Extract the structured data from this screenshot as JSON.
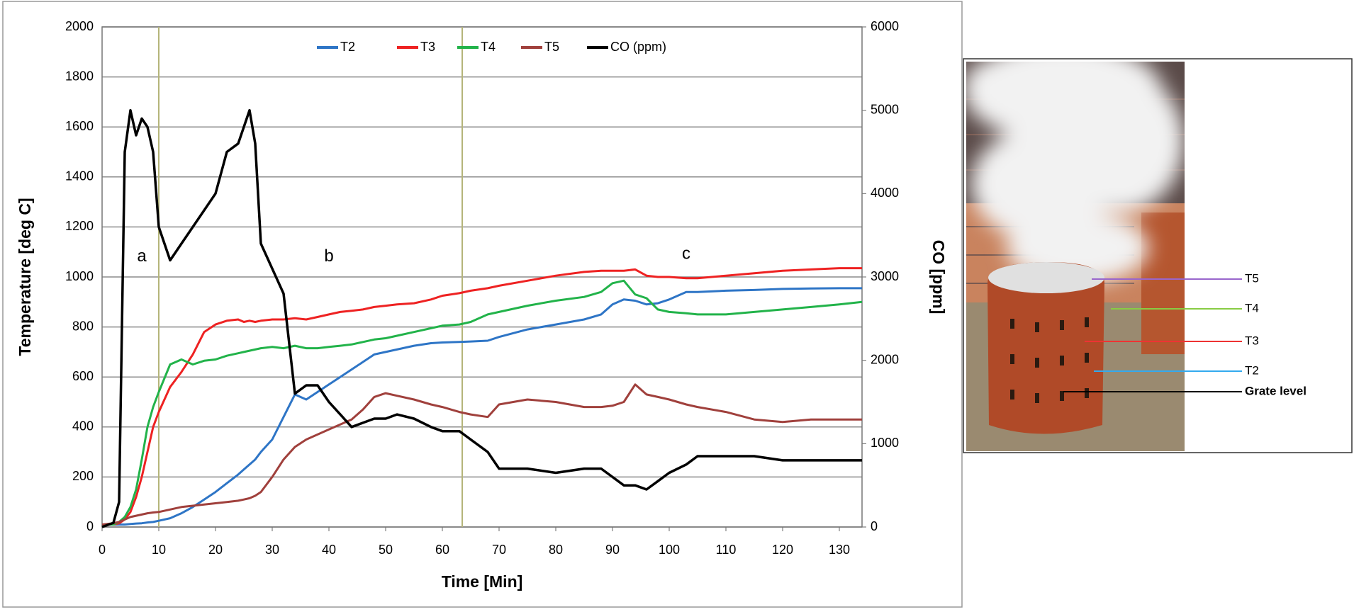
{
  "chart_data": {
    "type": "line",
    "y_label": "Temperature [deg C]",
    "y2_label": "CO [ppm]",
    "x_label": "Time [Min]",
    "x": [
      0,
      2,
      3,
      4,
      5,
      6,
      7,
      8,
      9,
      10,
      12,
      14,
      16,
      18,
      20,
      22,
      24,
      25,
      26,
      27,
      28,
      30,
      32,
      34,
      36,
      38,
      40,
      42,
      44,
      46,
      48,
      50,
      52,
      55,
      58,
      60,
      63,
      65,
      68,
      70,
      75,
      80,
      85,
      88,
      90,
      92,
      94,
      96,
      98,
      100,
      103,
      105,
      110,
      115,
      120,
      125,
      130,
      134
    ],
    "series": [
      {
        "name": "T2",
        "color": "#2e75c6",
        "values": [
          10,
          10,
          10,
          10,
          12,
          14,
          15,
          18,
          20,
          25,
          35,
          55,
          80,
          110,
          140,
          175,
          210,
          230,
          250,
          270,
          300,
          350,
          440,
          530,
          510,
          540,
          570,
          600,
          630,
          660,
          690,
          700,
          710,
          725,
          735,
          738,
          740,
          742,
          745,
          760,
          790,
          810,
          830,
          850,
          890,
          910,
          905,
          890,
          895,
          910,
          940,
          940,
          945,
          948,
          952,
          954,
          955,
          955
        ]
      },
      {
        "name": "T3",
        "color": "#ee2222",
        "values": [
          10,
          10,
          15,
          30,
          60,
          120,
          200,
          300,
          400,
          460,
          560,
          620,
          690,
          780,
          810,
          825,
          830,
          820,
          825,
          820,
          825,
          830,
          830,
          835,
          830,
          840,
          850,
          860,
          865,
          870,
          880,
          885,
          890,
          895,
          910,
          925,
          935,
          945,
          955,
          965,
          985,
          1005,
          1020,
          1025,
          1025,
          1025,
          1030,
          1005,
          1000,
          1000,
          995,
          995,
          1005,
          1015,
          1025,
          1030,
          1035,
          1035
        ]
      },
      {
        "name": "T4",
        "color": "#22b34a",
        "values": [
          10,
          10,
          20,
          40,
          80,
          150,
          270,
          400,
          480,
          540,
          650,
          670,
          650,
          665,
          670,
          685,
          695,
          700,
          705,
          710,
          715,
          720,
          715,
          725,
          715,
          715,
          720,
          725,
          730,
          740,
          750,
          755,
          765,
          780,
          795,
          805,
          810,
          820,
          850,
          860,
          885,
          905,
          920,
          940,
          975,
          985,
          930,
          915,
          870,
          860,
          855,
          850,
          850,
          860,
          870,
          880,
          890,
          900
        ]
      },
      {
        "name": "T5",
        "color": "#a0403c",
        "values": [
          10,
          15,
          20,
          30,
          40,
          45,
          50,
          55,
          58,
          60,
          70,
          80,
          85,
          90,
          95,
          100,
          105,
          110,
          115,
          125,
          140,
          200,
          270,
          320,
          350,
          370,
          390,
          410,
          430,
          470,
          520,
          535,
          525,
          510,
          490,
          480,
          460,
          450,
          440,
          490,
          510,
          500,
          480,
          480,
          485,
          500,
          570,
          530,
          520,
          510,
          490,
          480,
          460,
          430,
          420,
          430,
          430,
          430
        ]
      },
      {
        "name": "CO (ppm)",
        "color": "#000000",
        "axis": "y2",
        "values": [
          0,
          50,
          300,
          4500,
          5000,
          4700,
          4900,
          4800,
          4500,
          3600,
          3200,
          3400,
          3600,
          3800,
          4000,
          4500,
          4600,
          4800,
          5000,
          4600,
          3400,
          3100,
          2800,
          1600,
          1700,
          1700,
          1500,
          1350,
          1200,
          1250,
          1300,
          1300,
          1350,
          1300,
          1200,
          1150,
          1150,
          1050,
          900,
          700,
          700,
          650,
          700,
          700,
          600,
          500,
          500,
          450,
          550,
          650,
          750,
          850,
          850,
          850,
          800,
          800,
          800,
          800
        ]
      }
    ],
    "xlim": [
      0,
      134
    ],
    "xticks": [
      0,
      10,
      20,
      30,
      40,
      50,
      60,
      70,
      80,
      90,
      100,
      110,
      120,
      130
    ],
    "ylim": [
      0,
      2000
    ],
    "yticks": [
      0,
      200,
      400,
      600,
      800,
      1000,
      1200,
      1400,
      1600,
      1800,
      2000
    ],
    "y2lim": [
      0,
      6000
    ],
    "y2ticks": [
      0,
      1000,
      2000,
      3000,
      4000,
      5000,
      6000
    ],
    "grid": true,
    "legend": "top",
    "vlines": [
      10,
      63.5
    ],
    "vline_color": "#b5b57a",
    "annotations": [
      {
        "text": "a",
        "x": 7,
        "y": 1080
      },
      {
        "text": "b",
        "x": 40,
        "y": 1080
      },
      {
        "text": "c",
        "x": 103,
        "y": 1090
      }
    ]
  },
  "photo": {
    "labels": [
      {
        "text": "T5",
        "color": "#9966cc"
      },
      {
        "text": "T4",
        "color": "#88cc44"
      },
      {
        "text": "T3",
        "color": "#ee3333"
      },
      {
        "text": "T2",
        "color": "#33aaee"
      },
      {
        "text": "Grate level",
        "color": "#000000"
      }
    ]
  }
}
